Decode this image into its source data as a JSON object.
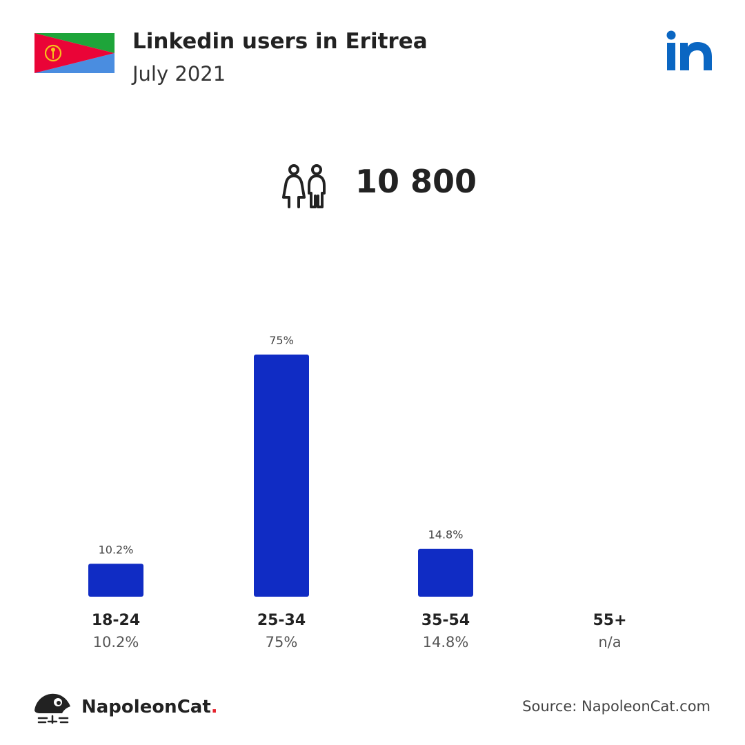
{
  "header": {
    "title": "Linkedin users in Eritrea",
    "subtitle": "July 2021"
  },
  "colors": {
    "bar": "#102cc4",
    "flag_green": "#1ea53a",
    "flag_blue": "#4a8de0",
    "flag_red": "#ea0437",
    "flag_emblem": "#f7c21b",
    "linkedin": "#0a66c2"
  },
  "icons": {
    "flag": "eritrea-flag-icon",
    "brand": "linkedin-logo-icon",
    "users": "male-female-users-icon",
    "footer_logo": "napoleoncat-logo-icon"
  },
  "summary": {
    "total_users": "10 800"
  },
  "chart_data": {
    "type": "bar",
    "categories": [
      "18-24",
      "25-34",
      "35-54",
      "55+"
    ],
    "values": [
      10.2,
      75,
      14.8,
      null
    ],
    "bar_labels": [
      "10.2%",
      "75%",
      "14.8%",
      ""
    ],
    "category_values": [
      "10.2%",
      "75%",
      "14.8%",
      "n/a"
    ],
    "ylim": [
      0,
      75
    ],
    "grid": false
  },
  "footer": {
    "brand_name": "NapoleonCat",
    "brand_dot": ".",
    "source": "Source: NapoleonCat.com"
  }
}
